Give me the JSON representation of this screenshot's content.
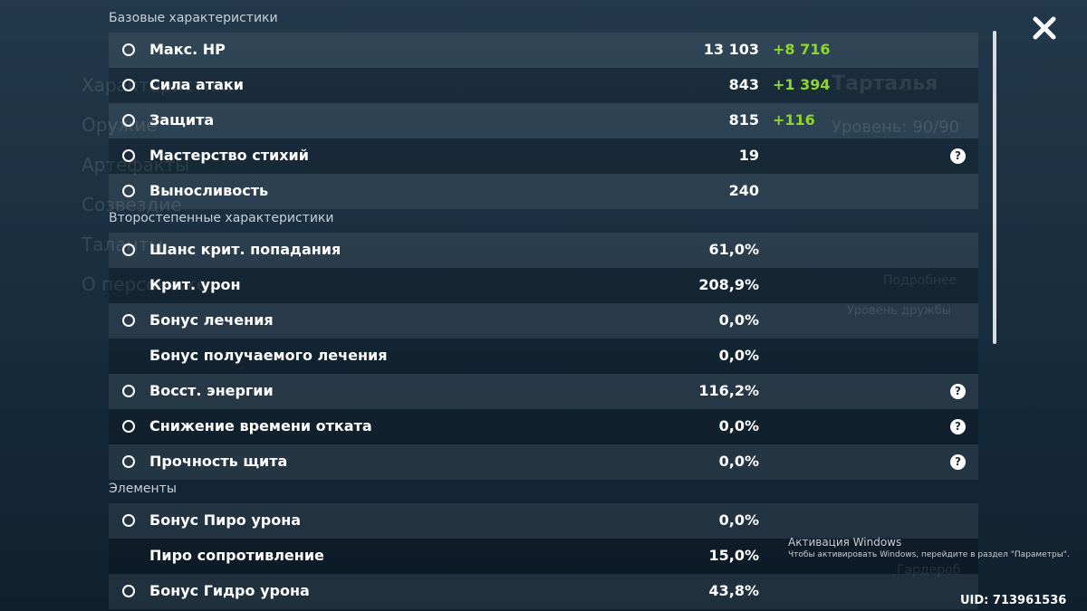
{
  "menu": [
    "Характеристики",
    "Оружие",
    "Артефакты",
    "Созвездие",
    "Таланты",
    "О персонаже"
  ],
  "character": {
    "name": "Тарталья",
    "level": "Уровень: 90/90",
    "details": "Подробнее",
    "friendship": "Уровень дружбы",
    "wardrobe": "Гардероб"
  },
  "sections": [
    {
      "title": "Базовые характеристики",
      "rows": [
        {
          "name": "Макс. HP",
          "value": "13 103",
          "bonus": "+8 716",
          "icon": true
        },
        {
          "name": "Сила атаки",
          "value": "843",
          "bonus": "+1 394",
          "icon": true
        },
        {
          "name": "Защита",
          "value": "815",
          "bonus": "+116",
          "icon": true
        },
        {
          "name": "Мастерство стихий",
          "value": "19",
          "icon": true,
          "help": true
        },
        {
          "name": "Выносливость",
          "value": "240",
          "icon": true
        }
      ]
    },
    {
      "title": "Второстепенные характеристики",
      "rows": [
        {
          "name": "Шанс крит. попадания",
          "value": "61,0%",
          "icon": true
        },
        {
          "name": "Крит. урон",
          "value": "208,9%"
        },
        {
          "name": "Бонус лечения",
          "value": "0,0%",
          "icon": true
        },
        {
          "name": "Бонус получаемого лечения",
          "value": "0,0%"
        },
        {
          "name": "Восст. энергии",
          "value": "116,2%",
          "icon": true,
          "help": true
        },
        {
          "name": "Снижение времени отката",
          "value": "0,0%",
          "icon": true,
          "help": true
        },
        {
          "name": "Прочность щита",
          "value": "0,0%",
          "icon": true,
          "help": true
        }
      ]
    },
    {
      "title": "Элементы",
      "rows": [
        {
          "name": "Бонус Пиро урона",
          "value": "0,0%",
          "icon": true
        },
        {
          "name": "Пиро сопротивление",
          "value": "15,0%"
        },
        {
          "name": "Бонус Гидро урона",
          "value": "43,8%",
          "icon": true
        }
      ]
    }
  ],
  "windows": {
    "title": "Активация Windows",
    "text": "Чтобы активировать Windows, перейдите в раздел \"Параметры\"."
  },
  "uid": "UID: 713961536"
}
